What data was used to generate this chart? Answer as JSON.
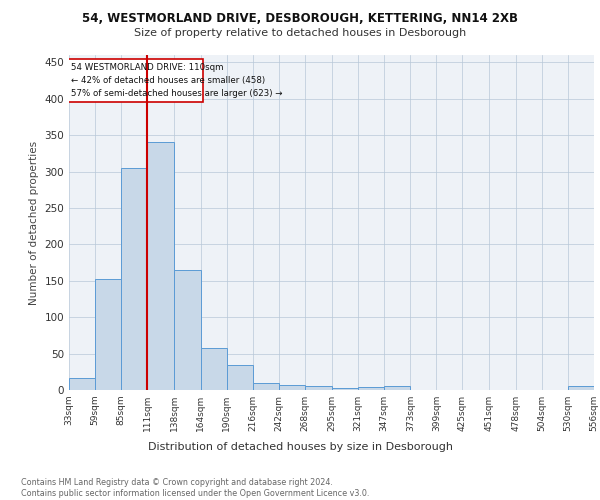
{
  "title1": "54, WESTMORLAND DRIVE, DESBOROUGH, KETTERING, NN14 2XB",
  "title2": "Size of property relative to detached houses in Desborough",
  "xlabel": "Distribution of detached houses by size in Desborough",
  "ylabel": "Number of detached properties",
  "footer": "Contains HM Land Registry data © Crown copyright and database right 2024.\nContains public sector information licensed under the Open Government Licence v3.0.",
  "annotation_line1": "54 WESTMORLAND DRIVE: 110sqm",
  "annotation_line2": "← 42% of detached houses are smaller (458)",
  "annotation_line3": "57% of semi-detached houses are larger (623) →",
  "bar_color": "#c8d8e8",
  "bar_edge_color": "#5b9bd5",
  "redline_x": 111,
  "bin_edges": [
    33,
    59,
    85,
    111,
    138,
    164,
    190,
    216,
    242,
    268,
    295,
    321,
    347,
    373,
    399,
    425,
    451,
    478,
    504,
    530,
    556
  ],
  "bar_heights": [
    17,
    153,
    305,
    340,
    165,
    57,
    35,
    10,
    7,
    5,
    3,
    4,
    5,
    0,
    0,
    0,
    0,
    0,
    0,
    5
  ],
  "ylim": [
    0,
    460
  ],
  "yticks": [
    0,
    50,
    100,
    150,
    200,
    250,
    300,
    350,
    400,
    450
  ],
  "background_color": "#ffffff",
  "plot_bg_color": "#eef2f7"
}
